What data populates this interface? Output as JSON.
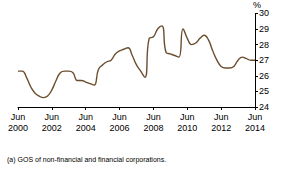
{
  "chart_data": {
    "type": "line",
    "y_label": "%",
    "annotation": "(a) GOS of non-financial and financial corporations.",
    "categories": [
      "Jun 2000",
      null,
      null,
      null,
      null,
      null,
      null,
      null,
      "Jun 2002",
      null,
      null,
      null,
      null,
      null,
      null,
      null,
      "Jun 2004",
      null,
      null,
      null,
      null,
      null,
      null,
      null,
      "Jun 2006",
      null,
      null,
      null,
      null,
      null,
      null,
      null,
      "Jun 2008",
      null,
      null,
      null,
      null,
      null,
      null,
      null,
      "Jun 2010",
      null,
      null,
      null,
      null,
      null,
      null,
      null,
      "Jun 2012",
      null,
      null,
      null,
      null,
      null,
      null,
      null,
      "Jun 2014"
    ],
    "values": [
      26.3,
      26.3,
      25.9,
      25.3,
      24.9,
      24.7,
      24.6,
      24.7,
      25.1,
      25.7,
      26.2,
      26.3,
      26.3,
      26.2,
      25.7,
      25.7,
      25.6,
      25.5,
      25.4,
      26.4,
      26.7,
      26.9,
      27.0,
      27.4,
      27.6,
      27.7,
      27.8,
      27.3,
      26.7,
      26.3,
      25.9,
      28.4,
      28.5,
      29.0,
      29.2,
      27.5,
      27.4,
      27.3,
      27.2,
      29.0,
      28.4,
      28.0,
      28.1,
      28.4,
      28.6,
      28.3,
      27.6,
      27.0,
      26.6,
      26.5,
      26.5,
      26.6,
      27.0,
      27.2,
      27.1,
      27.0,
      27.0
    ],
    "color": "#6b4e2e",
    "ylim": [
      24,
      30
    ],
    "yticks": [
      24,
      25,
      26,
      27,
      28,
      29,
      30
    ],
    "grid": false
  }
}
